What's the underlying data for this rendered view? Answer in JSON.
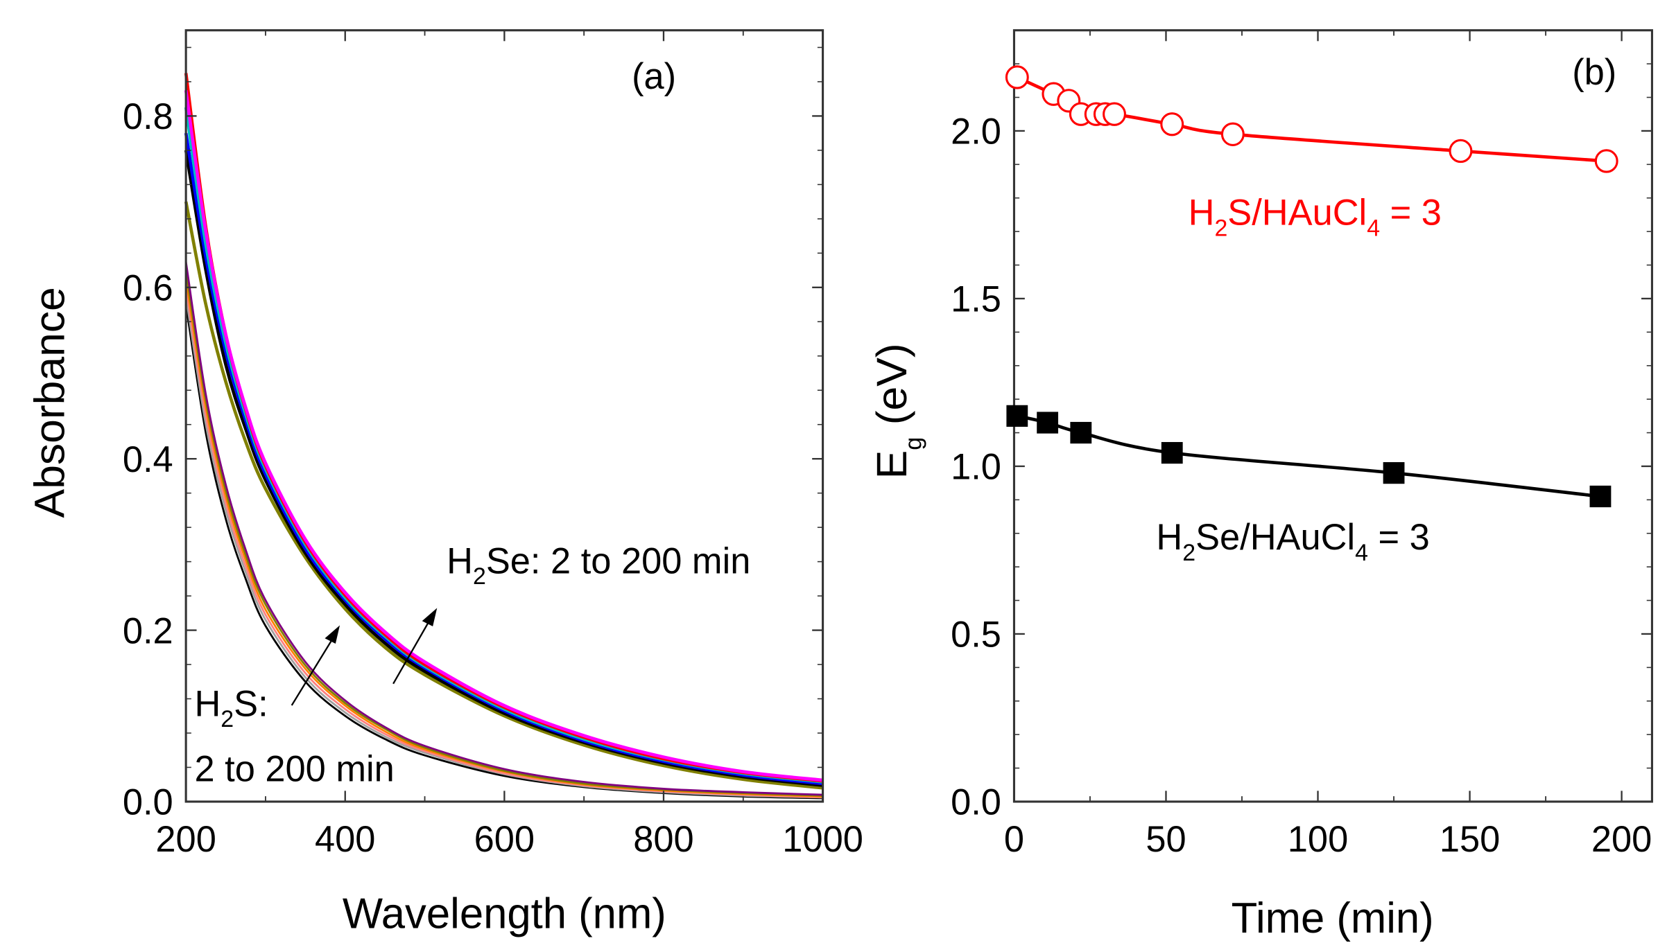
{
  "chart_data": [
    {
      "type": "line",
      "panel_label": "(a)",
      "xlabel": "Wavelength (nm)",
      "ylabel": "Absorbance",
      "xlim": [
        200,
        1000
      ],
      "ylim": [
        0,
        0.9
      ],
      "xticks": [
        200,
        400,
        600,
        800,
        1000
      ],
      "yticks": [
        0.0,
        0.2,
        0.4,
        0.6,
        0.8
      ],
      "x": [
        200,
        225,
        250,
        275,
        300,
        350,
        400,
        450,
        500,
        600,
        700,
        800,
        900,
        1000
      ],
      "series": [
        {
          "name": "H2Se 2 min",
          "group": "H2Se",
          "color": "#808000",
          "values": [
            0.7,
            0.58,
            0.49,
            0.42,
            0.365,
            0.285,
            0.225,
            0.18,
            0.148,
            0.1,
            0.066,
            0.042,
            0.026,
            0.016
          ]
        },
        {
          "name": "H2Se a",
          "group": "H2Se",
          "color": "#000000",
          "values": [
            0.76,
            0.62,
            0.51,
            0.435,
            0.375,
            0.29,
            0.23,
            0.185,
            0.152,
            0.103,
            0.069,
            0.045,
            0.029,
            0.019
          ]
        },
        {
          "name": "H2Se b",
          "group": "H2Se",
          "color": "#0000ff",
          "values": [
            0.78,
            0.635,
            0.525,
            0.445,
            0.382,
            0.295,
            0.235,
            0.19,
            0.156,
            0.106,
            0.071,
            0.047,
            0.031,
            0.021
          ]
        },
        {
          "name": "H2Se c",
          "group": "H2Se",
          "color": "#00c0c0",
          "values": [
            0.81,
            0.65,
            0.535,
            0.452,
            0.388,
            0.3,
            0.238,
            0.193,
            0.158,
            0.108,
            0.073,
            0.049,
            0.033,
            0.023
          ]
        },
        {
          "name": "H2Se d",
          "group": "H2Se",
          "color": "#ff0000",
          "values": [
            0.85,
            0.67,
            0.545,
            0.458,
            0.392,
            0.303,
            0.241,
            0.195,
            0.16,
            0.11,
            0.075,
            0.05,
            0.034,
            0.024
          ]
        },
        {
          "name": "H2Se 200 min",
          "group": "H2Se",
          "color": "#ff00ff",
          "values": [
            0.83,
            0.665,
            0.545,
            0.46,
            0.395,
            0.306,
            0.244,
            0.198,
            0.163,
            0.112,
            0.077,
            0.052,
            0.035,
            0.025
          ]
        },
        {
          "name": "H2S 2 min",
          "group": "H2S",
          "color": "#000000",
          "values": [
            0.58,
            0.43,
            0.33,
            0.26,
            0.205,
            0.14,
            0.1,
            0.073,
            0.054,
            0.03,
            0.017,
            0.01,
            0.006,
            0.004
          ]
        },
        {
          "name": "H2S a",
          "group": "H2S",
          "color": "#a0a0a0",
          "values": [
            0.59,
            0.44,
            0.34,
            0.268,
            0.212,
            0.145,
            0.104,
            0.076,
            0.057,
            0.032,
            0.018,
            0.011,
            0.007,
            0.005
          ]
        },
        {
          "name": "H2S b",
          "group": "H2S",
          "color": "#ff8080",
          "values": [
            0.6,
            0.45,
            0.348,
            0.275,
            0.218,
            0.15,
            0.108,
            0.079,
            0.059,
            0.033,
            0.019,
            0.012,
            0.008,
            0.005
          ]
        },
        {
          "name": "H2S c",
          "group": "H2S",
          "color": "#ff8000",
          "values": [
            0.61,
            0.46,
            0.356,
            0.282,
            0.224,
            0.155,
            0.112,
            0.082,
            0.061,
            0.035,
            0.02,
            0.013,
            0.009,
            0.006
          ]
        },
        {
          "name": "H2S d",
          "group": "H2S",
          "color": "#808000",
          "values": [
            0.62,
            0.468,
            0.363,
            0.288,
            0.23,
            0.159,
            0.115,
            0.085,
            0.063,
            0.036,
            0.021,
            0.014,
            0.01,
            0.007
          ]
        },
        {
          "name": "H2S 200 min",
          "group": "H2S",
          "color": "#800080",
          "values": [
            0.63,
            0.475,
            0.37,
            0.294,
            0.235,
            0.163,
            0.118,
            0.087,
            0.065,
            0.038,
            0.023,
            0.015,
            0.011,
            0.008
          ]
        }
      ],
      "annotations": {
        "h2se": {
          "main": "H",
          "sub": "2",
          "rest": "Se: 2 to 200 min"
        },
        "h2s_line1": {
          "main": "H",
          "sub": "2",
          "rest": "S:"
        },
        "h2s_line2": "2 to 200 min"
      }
    },
    {
      "type": "line",
      "panel_label": "(b)",
      "xlabel": "Time (min)",
      "ylabel": {
        "main": "E",
        "sub": "g",
        "rest": " (eV)"
      },
      "xlim": [
        0,
        210
      ],
      "ylim": [
        0,
        2.3
      ],
      "xticks": [
        0,
        50,
        100,
        150,
        200
      ],
      "yticks": [
        0.0,
        0.5,
        1.0,
        1.5,
        2.0
      ],
      "series": [
        {
          "name": "H2S/HAuCl4 = 3",
          "color": "#ff0000",
          "marker": "open-circle",
          "x": [
            1,
            13,
            18,
            22,
            27,
            30,
            33,
            52,
            72,
            147,
            195
          ],
          "y": [
            2.16,
            2.11,
            2.09,
            2.05,
            2.05,
            2.05,
            2.05,
            2.02,
            1.99,
            1.94,
            1.91
          ],
          "label": {
            "a": "H",
            "b": "2",
            "c": "S/HAuCl",
            "d": "4",
            "e": " = 3"
          }
        },
        {
          "name": "H2Se/HAuCl4 = 3",
          "color": "#000000",
          "marker": "filled-square",
          "x": [
            1,
            11,
            22,
            52,
            125,
            193
          ],
          "y": [
            1.15,
            1.13,
            1.1,
            1.04,
            0.98,
            0.91
          ],
          "label": {
            "a": "H",
            "b": "2",
            "c": "Se/HAuCl",
            "d": "4",
            "e": " = 3"
          }
        }
      ]
    }
  ]
}
